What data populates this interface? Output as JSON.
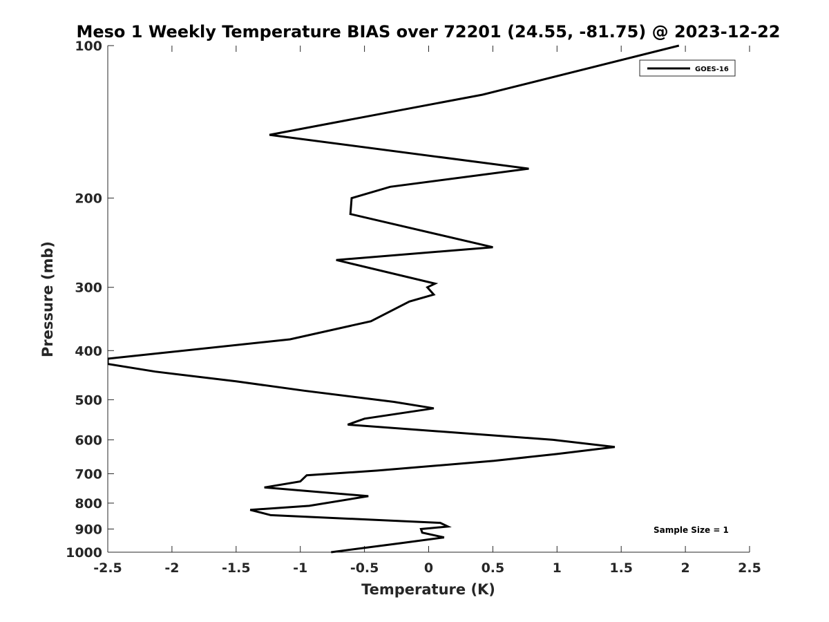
{
  "chart_data": {
    "type": "line",
    "title": "Meso 1 Weekly Temperature BIAS over 72201 (24.55, -81.75) @ 2023-12-22",
    "xlabel": "Temperature (K)",
    "ylabel": "Pressure (mb)",
    "xlim": [
      -2.5,
      2.5
    ],
    "ylim": [
      100,
      1000
    ],
    "y_scale": "log",
    "y_reversed": true,
    "xticks": [
      -2.5,
      -2,
      -1.5,
      -1,
      -0.5,
      0,
      0.5,
      1,
      1.5,
      2,
      2.5
    ],
    "xtick_labels": [
      "-2.5",
      "-2",
      "-1.5",
      "-1",
      "-0.5",
      "0",
      "0.5",
      "1",
      "1.5",
      "2",
      "2.5"
    ],
    "yticks": [
      100,
      200,
      300,
      400,
      500,
      600,
      700,
      800,
      900,
      1000
    ],
    "ytick_labels": [
      "100",
      "200",
      "300",
      "400",
      "500",
      "600",
      "700",
      "800",
      "900",
      "1000"
    ],
    "grid": false,
    "legend_position": "top-right",
    "annotation": "Sample Size = 1",
    "series": [
      {
        "name": "GOES-16",
        "color": "#000000",
        "x": [
          1.95,
          0.42,
          -1.24,
          0.78,
          -0.3,
          -0.6,
          -0.61,
          0.5,
          -0.72,
          0.05,
          -0.01,
          0.04,
          -0.15,
          -0.45,
          -1.08,
          -2.5,
          -2.5,
          -2.13,
          -1.5,
          -0.97,
          -0.27,
          0.04,
          -0.5,
          -0.63,
          0.97,
          1.45,
          1.0,
          0.51,
          -0.4,
          -0.95,
          -1.0,
          -1.28,
          -0.47,
          -0.93,
          -1.39,
          -1.23,
          0.09,
          0.15,
          -0.06,
          -0.05,
          0.12,
          -0.22,
          -0.76
        ],
        "y": [
          100,
          125,
          150,
          175,
          190,
          200,
          215,
          250,
          265,
          295,
          300,
          310,
          320,
          350,
          380,
          415,
          425,
          440,
          460,
          480,
          505,
          520,
          545,
          560,
          600,
          620,
          640,
          660,
          690,
          705,
          725,
          745,
          775,
          810,
          825,
          845,
          875,
          890,
          900,
          915,
          935,
          960,
          1000
        ]
      }
    ]
  }
}
